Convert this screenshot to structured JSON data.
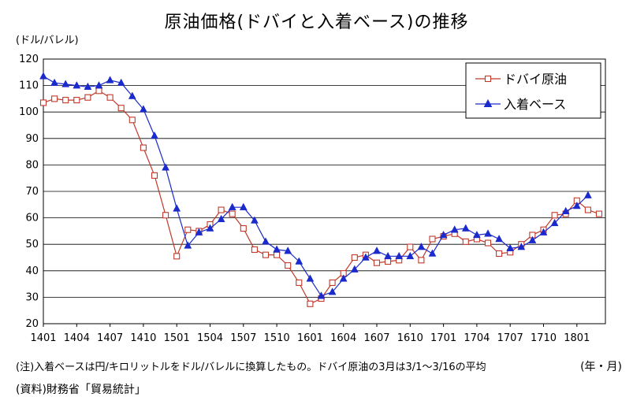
{
  "chart_data": {
    "type": "line",
    "title": "原油価格(ドバイと入着ベース)の推移",
    "ylabel": "(ドル/バレル)",
    "xlabel": "(年・月)",
    "ylim": [
      20,
      120
    ],
    "yticks": [
      20,
      30,
      40,
      50,
      60,
      70,
      80,
      90,
      100,
      110,
      120
    ],
    "x_tick_labels": [
      "1401",
      "1404",
      "1407",
      "1410",
      "1501",
      "1504",
      "1507",
      "1510",
      "1601",
      "1604",
      "1607",
      "1610",
      "1701",
      "1704",
      "1707",
      "1710",
      "1801"
    ],
    "grid": true,
    "legend_position": "top-right",
    "series": [
      {
        "name": "ドバイ原油",
        "color": "#c0392b",
        "marker": "square-open",
        "values": [
          103.5,
          105,
          104.5,
          104.5,
          105.5,
          108,
          105.5,
          101.5,
          97,
          86.5,
          76,
          61,
          45.5,
          55.5,
          55,
          57.5,
          63,
          61.5,
          56,
          48,
          46,
          46,
          42,
          35.5,
          27.5,
          29.5,
          35.5,
          39,
          45,
          46,
          43,
          43.5,
          44,
          49,
          44,
          52,
          53,
          54,
          51,
          52,
          50.5,
          46.5,
          47,
          50,
          53.5,
          55.5,
          61,
          61.5,
          66.5,
          63,
          61.5
        ]
      },
      {
        "name": "入着ベース",
        "color": "#1a2acc",
        "marker": "triangle-filled",
        "values": [
          113.5,
          111,
          110.5,
          110,
          109.5,
          110,
          112,
          111,
          106,
          101,
          91,
          79,
          63.5,
          49.5,
          54.5,
          56,
          59.5,
          64,
          64,
          59,
          51,
          48,
          47.5,
          43.5,
          37,
          30.5,
          32,
          37,
          40.5,
          45,
          47.5,
          45.5,
          45.5,
          45.5,
          49,
          46.5,
          53.5,
          55.5,
          56,
          53.5,
          54,
          52,
          48.5,
          49,
          51.5,
          54.5,
          58,
          62.5,
          64.5,
          68.5
        ]
      }
    ]
  },
  "notes": {
    "note": "(注)入着ベースは円/キロリットルをドル/バレルに換算したもの。ドバイ原油の3月は3/1～3/16の平均",
    "source": "(資料)財務省「貿易統計」"
  }
}
